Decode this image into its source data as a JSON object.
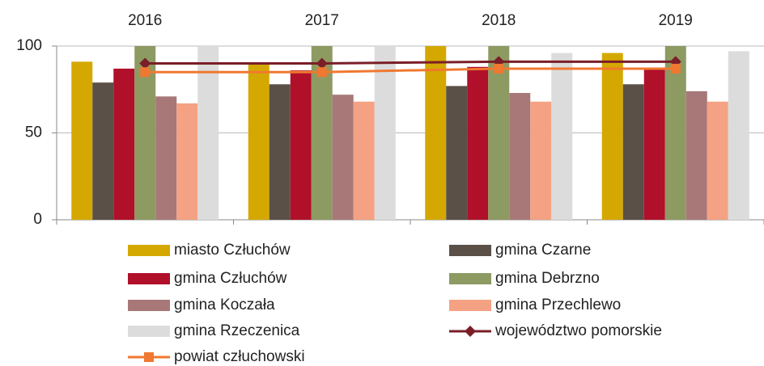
{
  "chart_data": {
    "type": "bar",
    "categories": [
      "2016",
      "2017",
      "2018",
      "2019"
    ],
    "ylim": [
      0,
      100
    ],
    "yticks": [
      0,
      50,
      100
    ],
    "grid": true,
    "series": [
      {
        "name": "miasto Człuchów",
        "color": "#d4a800",
        "values": [
          91,
          90,
          100,
          96
        ]
      },
      {
        "name": "gmina Czarne",
        "color": "#5a5047",
        "values": [
          79,
          78,
          77,
          78
        ]
      },
      {
        "name": "gmina Człuchów",
        "color": "#b0102a",
        "values": [
          87,
          86,
          88,
          87
        ]
      },
      {
        "name": "gmina Debrzno",
        "color": "#8d9a62",
        "values": [
          100,
          100,
          100,
          100
        ]
      },
      {
        "name": "gmina Koczała",
        "color": "#a87878",
        "values": [
          71,
          72,
          73,
          74
        ]
      },
      {
        "name": "gmina Przechlewo",
        "color": "#f4a283",
        "values": [
          67,
          68,
          68,
          68
        ]
      },
      {
        "name": "gmina Rzeczenica",
        "color": "#dcdcdc",
        "values": [
          100,
          100,
          96,
          97
        ]
      },
      {
        "name": "województwo pomorskie",
        "color": "#7a1e28",
        "type": "line",
        "values": [
          90,
          90,
          91,
          91
        ]
      },
      {
        "name": "powiat człuchowski",
        "color": "#f07830",
        "type": "line",
        "values": [
          85,
          85,
          87,
          87
        ]
      }
    ]
  }
}
